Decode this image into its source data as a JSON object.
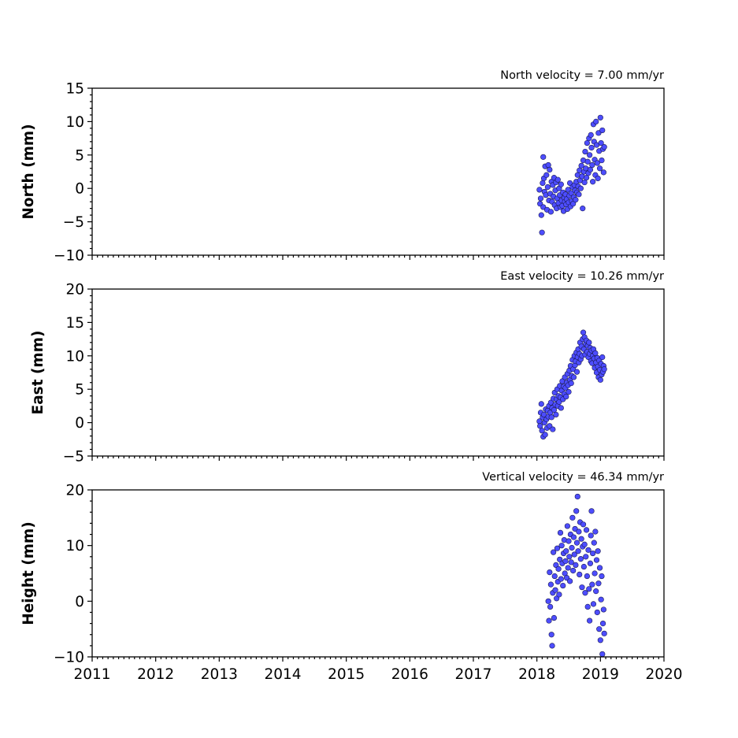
{
  "chart_data": [
    {
      "type": "scatter",
      "velocity_label": "North velocity = 7.00 mm/yr",
      "ylabel": "North (mm)",
      "xlim": [
        2011,
        2020
      ],
      "ylim": [
        -10,
        15
      ],
      "x_ticks": [
        "2011",
        "2012",
        "2013",
        "2014",
        "2015",
        "2016",
        "2017",
        "2018",
        "2019",
        "2020"
      ],
      "y_ticks": [
        {
          "v": 15,
          "label": "15"
        },
        {
          "v": 10,
          "label": "10"
        },
        {
          "v": 5,
          "label": "5"
        },
        {
          "v": 0,
          "label": "0"
        },
        {
          "v": -5,
          "label": "−5"
        },
        {
          "v": -10,
          "label": "−10"
        }
      ],
      "x_tick_labels_visible": false,
      "marker_color": "#4d4dff",
      "points": [
        [
          2018.04,
          -0.2
        ],
        [
          2018.05,
          -2.3
        ],
        [
          2018.06,
          -1.5
        ],
        [
          2018.07,
          -4.0
        ],
        [
          2018.08,
          -6.6
        ],
        [
          2018.09,
          0.8
        ],
        [
          2018.1,
          4.7
        ],
        [
          2018.1,
          -2.8
        ],
        [
          2018.11,
          1.5
        ],
        [
          2018.12,
          -0.5
        ],
        [
          2018.13,
          3.3
        ],
        [
          2018.14,
          -1.0
        ],
        [
          2018.15,
          2.0
        ],
        [
          2018.16,
          -3.2
        ],
        [
          2018.17,
          0.2
        ],
        [
          2018.18,
          3.5
        ],
        [
          2018.19,
          -1.8
        ],
        [
          2018.2,
          2.8
        ],
        [
          2018.21,
          -0.8
        ],
        [
          2018.22,
          -3.5
        ],
        [
          2018.23,
          1.0
        ],
        [
          2018.24,
          -2.0
        ],
        [
          2018.25,
          0.5
        ],
        [
          2018.26,
          -1.2
        ],
        [
          2018.27,
          1.6
        ],
        [
          2018.28,
          -2.5
        ],
        [
          2018.29,
          -0.3
        ],
        [
          2018.3,
          0.9
        ],
        [
          2018.31,
          -3.0
        ],
        [
          2018.32,
          -1.5
        ],
        [
          2018.33,
          1.3
        ],
        [
          2018.34,
          -2.2
        ],
        [
          2018.35,
          0.0
        ],
        [
          2018.36,
          -1.0
        ],
        [
          2018.37,
          -2.8
        ],
        [
          2018.38,
          0.6
        ],
        [
          2018.39,
          -1.8
        ],
        [
          2018.4,
          -2.6
        ],
        [
          2018.41,
          -0.6
        ],
        [
          2018.42,
          -3.4
        ],
        [
          2018.43,
          -1.4
        ],
        [
          2018.44,
          -2.0
        ],
        [
          2018.45,
          -0.9
        ],
        [
          2018.46,
          -2.4
        ],
        [
          2018.47,
          -1.6
        ],
        [
          2018.48,
          -3.1
        ],
        [
          2018.49,
          -0.2
        ],
        [
          2018.5,
          -2.1
        ],
        [
          2018.51,
          -1.1
        ],
        [
          2018.52,
          0.8
        ],
        [
          2018.53,
          -2.7
        ],
        [
          2018.54,
          -0.7
        ],
        [
          2018.55,
          -1.9
        ],
        [
          2018.56,
          0.2
        ],
        [
          2018.57,
          -2.3
        ],
        [
          2018.58,
          -1.3
        ],
        [
          2018.59,
          0.5
        ],
        [
          2018.6,
          -0.3
        ],
        [
          2018.61,
          -1.7
        ],
        [
          2018.62,
          1.0
        ],
        [
          2018.63,
          -0.6
        ],
        [
          2018.64,
          2.0
        ],
        [
          2018.65,
          0.3
        ],
        [
          2018.66,
          -0.9
        ],
        [
          2018.67,
          2.7
        ],
        [
          2018.68,
          1.2
        ],
        [
          2018.69,
          0.0
        ],
        [
          2018.7,
          3.4
        ],
        [
          2018.71,
          1.8
        ],
        [
          2018.72,
          -3.0
        ],
        [
          2018.73,
          4.2
        ],
        [
          2018.74,
          2.5
        ],
        [
          2018.75,
          0.9
        ],
        [
          2018.76,
          5.5
        ],
        [
          2018.77,
          3.0
        ],
        [
          2018.78,
          1.6
        ],
        [
          2018.79,
          6.8
        ],
        [
          2018.8,
          4.0
        ],
        [
          2018.81,
          2.3
        ],
        [
          2018.82,
          7.5
        ],
        [
          2018.83,
          5.0
        ],
        [
          2018.84,
          2.8
        ],
        [
          2018.85,
          8.0
        ],
        [
          2018.86,
          6.1
        ],
        [
          2018.87,
          3.5
        ],
        [
          2018.88,
          1.0
        ],
        [
          2018.89,
          9.6
        ],
        [
          2018.9,
          7.0
        ],
        [
          2018.91,
          4.3
        ],
        [
          2018.92,
          2.0
        ],
        [
          2018.93,
          10.0
        ],
        [
          2018.94,
          6.5
        ],
        [
          2018.95,
          3.8
        ],
        [
          2018.96,
          1.5
        ],
        [
          2018.97,
          8.3
        ],
        [
          2018.98,
          5.6
        ],
        [
          2018.99,
          3.0
        ],
        [
          2019.0,
          10.6
        ],
        [
          2019.01,
          6.8
        ],
        [
          2019.02,
          4.2
        ],
        [
          2019.03,
          8.7
        ],
        [
          2019.04,
          5.9
        ],
        [
          2019.05,
          2.4
        ],
        [
          2019.06,
          6.2
        ]
      ]
    },
    {
      "type": "scatter",
      "velocity_label": "East velocity = 10.26 mm/yr",
      "ylabel": "East (mm)",
      "xlim": [
        2011,
        2020
      ],
      "ylim": [
        -5,
        20
      ],
      "x_ticks": [
        "2011",
        "2012",
        "2013",
        "2014",
        "2015",
        "2016",
        "2017",
        "2018",
        "2019",
        "2020"
      ],
      "y_ticks": [
        {
          "v": 20,
          "label": "20"
        },
        {
          "v": 15,
          "label": "15"
        },
        {
          "v": 10,
          "label": "10"
        },
        {
          "v": 5,
          "label": "5"
        },
        {
          "v": 0,
          "label": "0"
        },
        {
          "v": -5,
          "label": "−5"
        }
      ],
      "x_tick_labels_visible": false,
      "marker_color": "#4d4dff",
      "points": [
        [
          2018.04,
          0.2
        ],
        [
          2018.05,
          -0.5
        ],
        [
          2018.06,
          1.5
        ],
        [
          2018.07,
          2.8
        ],
        [
          2018.08,
          -1.2
        ],
        [
          2018.09,
          0.8
        ],
        [
          2018.1,
          -2.1
        ],
        [
          2018.11,
          1.2
        ],
        [
          2018.12,
          0.0
        ],
        [
          2018.13,
          -1.8
        ],
        [
          2018.14,
          2.0
        ],
        [
          2018.15,
          0.5
        ],
        [
          2018.16,
          -0.8
        ],
        [
          2018.17,
          1.8
        ],
        [
          2018.18,
          0.9
        ],
        [
          2018.19,
          2.5
        ],
        [
          2018.2,
          -0.5
        ],
        [
          2018.21,
          1.5
        ],
        [
          2018.22,
          3.0
        ],
        [
          2018.23,
          0.8
        ],
        [
          2018.24,
          2.2
        ],
        [
          2018.25,
          -1.0
        ],
        [
          2018.26,
          3.6
        ],
        [
          2018.27,
          1.9
        ],
        [
          2018.28,
          4.5
        ],
        [
          2018.29,
          2.7
        ],
        [
          2018.3,
          1.2
        ],
        [
          2018.31,
          3.5
        ],
        [
          2018.32,
          5.0
        ],
        [
          2018.33,
          2.5
        ],
        [
          2018.34,
          4.0
        ],
        [
          2018.35,
          3.1
        ],
        [
          2018.36,
          5.5
        ],
        [
          2018.37,
          3.8
        ],
        [
          2018.38,
          2.2
        ],
        [
          2018.39,
          4.8
        ],
        [
          2018.4,
          6.2
        ],
        [
          2018.41,
          3.5
        ],
        [
          2018.42,
          5.4
        ],
        [
          2018.43,
          4.3
        ],
        [
          2018.44,
          6.8
        ],
        [
          2018.45,
          5.2
        ],
        [
          2018.46,
          3.9
        ],
        [
          2018.47,
          6.0
        ],
        [
          2018.48,
          7.3
        ],
        [
          2018.49,
          5.6
        ],
        [
          2018.5,
          4.6
        ],
        [
          2018.51,
          7.8
        ],
        [
          2018.52,
          6.4
        ],
        [
          2018.53,
          8.5
        ],
        [
          2018.54,
          5.9
        ],
        [
          2018.55,
          7.0
        ],
        [
          2018.56,
          9.4
        ],
        [
          2018.57,
          8.0
        ],
        [
          2018.58,
          6.8
        ],
        [
          2018.59,
          10.0
        ],
        [
          2018.6,
          8.6
        ],
        [
          2018.61,
          9.2
        ],
        [
          2018.62,
          10.5
        ],
        [
          2018.63,
          7.6
        ],
        [
          2018.64,
          9.8
        ],
        [
          2018.65,
          11.0
        ],
        [
          2018.66,
          9.0
        ],
        [
          2018.67,
          10.3
        ],
        [
          2018.68,
          12.0
        ],
        [
          2018.69,
          9.5
        ],
        [
          2018.7,
          11.4
        ],
        [
          2018.71,
          10.0
        ],
        [
          2018.72,
          12.5
        ],
        [
          2018.73,
          13.5
        ],
        [
          2018.74,
          11.0
        ],
        [
          2018.75,
          12.8
        ],
        [
          2018.76,
          10.2
        ],
        [
          2018.77,
          11.8
        ],
        [
          2018.78,
          12.3
        ],
        [
          2018.79,
          10.6
        ],
        [
          2018.8,
          11.5
        ],
        [
          2018.81,
          9.8
        ],
        [
          2018.82,
          12.0
        ],
        [
          2018.83,
          10.3
        ],
        [
          2018.84,
          11.2
        ],
        [
          2018.85,
          9.2
        ],
        [
          2018.86,
          10.8
        ],
        [
          2018.87,
          8.9
        ],
        [
          2018.88,
          10.0
        ],
        [
          2018.89,
          11.0
        ],
        [
          2018.9,
          9.6
        ],
        [
          2018.91,
          8.2
        ],
        [
          2018.92,
          10.4
        ],
        [
          2018.93,
          9.0
        ],
        [
          2018.94,
          7.5
        ],
        [
          2018.95,
          9.7
        ],
        [
          2018.96,
          8.4
        ],
        [
          2018.97,
          6.8
        ],
        [
          2018.98,
          9.3
        ],
        [
          2018.99,
          7.9
        ],
        [
          2019.0,
          6.4
        ],
        [
          2019.01,
          8.8
        ],
        [
          2019.02,
          7.2
        ],
        [
          2019.03,
          9.8
        ],
        [
          2019.04,
          7.6
        ],
        [
          2019.05,
          8.5
        ],
        [
          2019.06,
          8.0
        ]
      ]
    },
    {
      "type": "scatter",
      "velocity_label": "Vertical velocity = 46.34 mm/yr",
      "ylabel": "Height (mm)",
      "xlim": [
        2011,
        2020
      ],
      "ylim": [
        -10,
        20
      ],
      "x_ticks": [
        "2011",
        "2012",
        "2013",
        "2014",
        "2015",
        "2016",
        "2017",
        "2018",
        "2019",
        "2020"
      ],
      "y_ticks": [
        {
          "v": 20,
          "label": "20"
        },
        {
          "v": 10,
          "label": "10"
        },
        {
          "v": 0,
          "label": "0"
        },
        {
          "v": -10,
          "label": "−10"
        }
      ],
      "x_tick_labels_visible": true,
      "marker_color": "#4d4dff",
      "points": [
        [
          2018.18,
          0.0
        ],
        [
          2018.19,
          -3.5
        ],
        [
          2018.2,
          5.2
        ],
        [
          2018.21,
          -1.0
        ],
        [
          2018.22,
          3.0
        ],
        [
          2018.23,
          -6.0
        ],
        [
          2018.24,
          -8.0
        ],
        [
          2018.25,
          1.5
        ],
        [
          2018.26,
          8.8
        ],
        [
          2018.27,
          -3.0
        ],
        [
          2018.28,
          4.5
        ],
        [
          2018.29,
          2.0
        ],
        [
          2018.3,
          6.5
        ],
        [
          2018.31,
          0.5
        ],
        [
          2018.32,
          9.5
        ],
        [
          2018.33,
          3.5
        ],
        [
          2018.34,
          5.8
        ],
        [
          2018.35,
          1.2
        ],
        [
          2018.36,
          7.5
        ],
        [
          2018.37,
          12.3
        ],
        [
          2018.38,
          4.0
        ],
        [
          2018.39,
          10.0
        ],
        [
          2018.4,
          6.8
        ],
        [
          2018.41,
          2.8
        ],
        [
          2018.42,
          8.6
        ],
        [
          2018.43,
          11.0
        ],
        [
          2018.44,
          5.0
        ],
        [
          2018.45,
          7.2
        ],
        [
          2018.46,
          9.0
        ],
        [
          2018.47,
          4.2
        ],
        [
          2018.48,
          13.5
        ],
        [
          2018.49,
          6.0
        ],
        [
          2018.5,
          10.8
        ],
        [
          2018.51,
          8.0
        ],
        [
          2018.52,
          3.6
        ],
        [
          2018.53,
          12.0
        ],
        [
          2018.54,
          7.0
        ],
        [
          2018.55,
          9.6
        ],
        [
          2018.56,
          15.0
        ],
        [
          2018.57,
          5.5
        ],
        [
          2018.58,
          11.5
        ],
        [
          2018.59,
          8.4
        ],
        [
          2018.6,
          13.0
        ],
        [
          2018.61,
          6.5
        ],
        [
          2018.62,
          16.2
        ],
        [
          2018.63,
          10.5
        ],
        [
          2018.64,
          18.8
        ],
        [
          2018.65,
          9.0
        ],
        [
          2018.66,
          12.5
        ],
        [
          2018.67,
          4.8
        ],
        [
          2018.68,
          14.2
        ],
        [
          2018.69,
          7.6
        ],
        [
          2018.7,
          11.2
        ],
        [
          2018.71,
          2.5
        ],
        [
          2018.72,
          9.8
        ],
        [
          2018.73,
          13.8
        ],
        [
          2018.74,
          6.2
        ],
        [
          2018.75,
          10.2
        ],
        [
          2018.76,
          1.5
        ],
        [
          2018.77,
          8.0
        ],
        [
          2018.78,
          12.8
        ],
        [
          2018.79,
          4.5
        ],
        [
          2018.8,
          -1.0
        ],
        [
          2018.81,
          9.2
        ],
        [
          2018.82,
          2.2
        ],
        [
          2018.83,
          -3.5
        ],
        [
          2018.84,
          6.8
        ],
        [
          2018.85,
          11.8
        ],
        [
          2018.86,
          16.2
        ],
        [
          2018.87,
          3.0
        ],
        [
          2018.88,
          8.6
        ],
        [
          2018.89,
          -0.5
        ],
        [
          2018.9,
          10.5
        ],
        [
          2018.91,
          5.0
        ],
        [
          2018.92,
          12.5
        ],
        [
          2018.93,
          1.8
        ],
        [
          2018.94,
          7.4
        ],
        [
          2018.95,
          -2.0
        ],
        [
          2018.96,
          9.0
        ],
        [
          2018.97,
          3.2
        ],
        [
          2018.98,
          -5.0
        ],
        [
          2018.99,
          6.0
        ],
        [
          2019.0,
          -7.0
        ],
        [
          2019.01,
          0.3
        ],
        [
          2019.02,
          4.5
        ],
        [
          2019.03,
          -9.5
        ],
        [
          2019.04,
          -4.0
        ],
        [
          2019.05,
          -1.5
        ],
        [
          2019.06,
          -5.8
        ]
      ]
    }
  ]
}
